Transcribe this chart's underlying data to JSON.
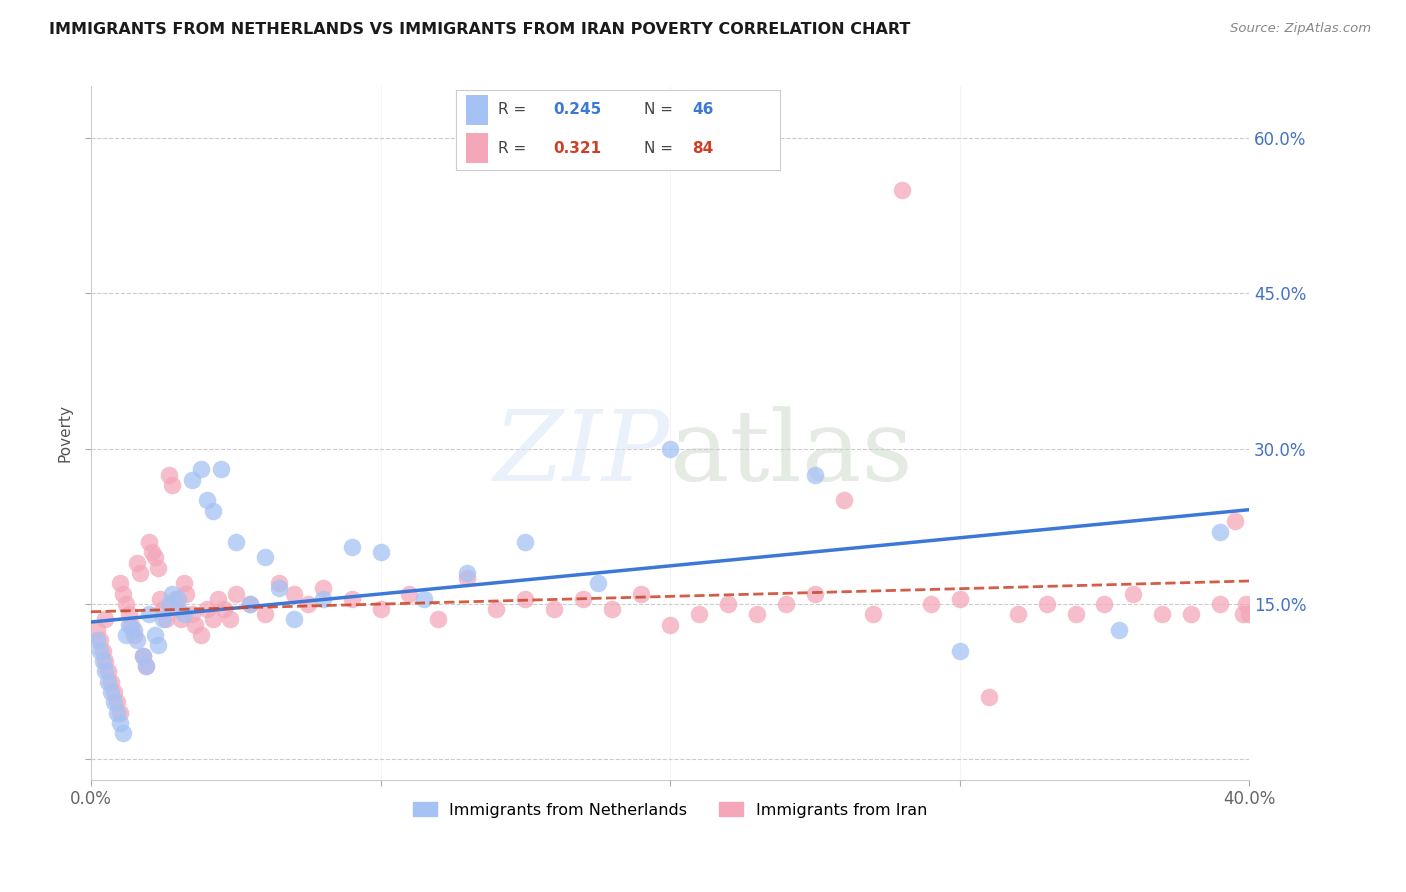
{
  "title": "IMMIGRANTS FROM NETHERLANDS VS IMMIGRANTS FROM IRAN POVERTY CORRELATION CHART",
  "source": "Source: ZipAtlas.com",
  "ylabel": "Poverty",
  "x_min": 0.0,
  "x_max": 0.4,
  "y_min": -0.02,
  "y_max": 0.65,
  "y_ticks": [
    0.0,
    0.15,
    0.3,
    0.45,
    0.6
  ],
  "color_netherlands": "#a4c2f4",
  "color_iran": "#f4a7b9",
  "color_netherlands_line": "#3c78d8",
  "color_iran_line": "#cc4125",
  "legend_R_netherlands": "0.245",
  "legend_N_netherlands": "46",
  "legend_R_iran": "0.321",
  "legend_N_iran": "84",
  "netherlands_x": [
    0.002,
    0.003,
    0.004,
    0.005,
    0.006,
    0.007,
    0.008,
    0.009,
    0.01,
    0.011,
    0.012,
    0.013,
    0.015,
    0.016,
    0.018,
    0.019,
    0.02,
    0.022,
    0.023,
    0.025,
    0.027,
    0.028,
    0.03,
    0.032,
    0.035,
    0.038,
    0.04,
    0.042,
    0.045,
    0.05,
    0.055,
    0.06,
    0.065,
    0.07,
    0.08,
    0.09,
    0.1,
    0.115,
    0.13,
    0.15,
    0.175,
    0.2,
    0.25,
    0.3,
    0.355,
    0.39
  ],
  "netherlands_y": [
    0.115,
    0.105,
    0.095,
    0.085,
    0.075,
    0.065,
    0.055,
    0.045,
    0.035,
    0.025,
    0.12,
    0.13,
    0.125,
    0.115,
    0.1,
    0.09,
    0.14,
    0.12,
    0.11,
    0.135,
    0.15,
    0.16,
    0.155,
    0.14,
    0.27,
    0.28,
    0.25,
    0.24,
    0.28,
    0.21,
    0.15,
    0.195,
    0.165,
    0.135,
    0.155,
    0.205,
    0.2,
    0.155,
    0.18,
    0.21,
    0.17,
    0.3,
    0.275,
    0.105,
    0.125,
    0.22
  ],
  "iran_x": [
    0.002,
    0.003,
    0.004,
    0.005,
    0.005,
    0.006,
    0.007,
    0.008,
    0.009,
    0.01,
    0.01,
    0.011,
    0.012,
    0.013,
    0.014,
    0.015,
    0.016,
    0.017,
    0.018,
    0.019,
    0.02,
    0.021,
    0.022,
    0.023,
    0.024,
    0.025,
    0.026,
    0.027,
    0.028,
    0.029,
    0.03,
    0.031,
    0.032,
    0.033,
    0.035,
    0.036,
    0.038,
    0.04,
    0.042,
    0.044,
    0.046,
    0.048,
    0.05,
    0.055,
    0.06,
    0.065,
    0.07,
    0.075,
    0.08,
    0.09,
    0.1,
    0.11,
    0.12,
    0.13,
    0.14,
    0.15,
    0.16,
    0.17,
    0.18,
    0.19,
    0.2,
    0.21,
    0.22,
    0.23,
    0.24,
    0.25,
    0.26,
    0.27,
    0.28,
    0.29,
    0.3,
    0.31,
    0.32,
    0.33,
    0.34,
    0.35,
    0.36,
    0.37,
    0.38,
    0.39,
    0.395,
    0.398,
    0.399,
    0.4
  ],
  "iran_y": [
    0.125,
    0.115,
    0.105,
    0.095,
    0.135,
    0.085,
    0.075,
    0.065,
    0.055,
    0.045,
    0.17,
    0.16,
    0.15,
    0.14,
    0.13,
    0.12,
    0.19,
    0.18,
    0.1,
    0.09,
    0.21,
    0.2,
    0.195,
    0.185,
    0.155,
    0.145,
    0.135,
    0.275,
    0.265,
    0.155,
    0.145,
    0.135,
    0.17,
    0.16,
    0.14,
    0.13,
    0.12,
    0.145,
    0.135,
    0.155,
    0.145,
    0.135,
    0.16,
    0.15,
    0.14,
    0.17,
    0.16,
    0.15,
    0.165,
    0.155,
    0.145,
    0.16,
    0.135,
    0.175,
    0.145,
    0.155,
    0.145,
    0.155,
    0.145,
    0.16,
    0.13,
    0.14,
    0.15,
    0.14,
    0.15,
    0.16,
    0.25,
    0.14,
    0.55,
    0.15,
    0.155,
    0.06,
    0.14,
    0.15,
    0.14,
    0.15,
    0.16,
    0.14,
    0.14,
    0.15,
    0.23,
    0.14,
    0.15,
    0.14
  ]
}
